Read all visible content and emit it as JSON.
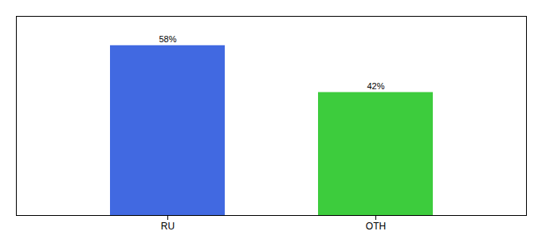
{
  "chart_data": {
    "type": "bar",
    "categories": [
      "RU",
      "OTH"
    ],
    "values": [
      58,
      42
    ],
    "value_labels": [
      "58%",
      "42%"
    ],
    "colors": [
      "#4169e1",
      "#3dcc3d"
    ],
    "ylim": [
      0,
      68
    ],
    "data_labels": true,
    "tick_labels": "x"
  }
}
